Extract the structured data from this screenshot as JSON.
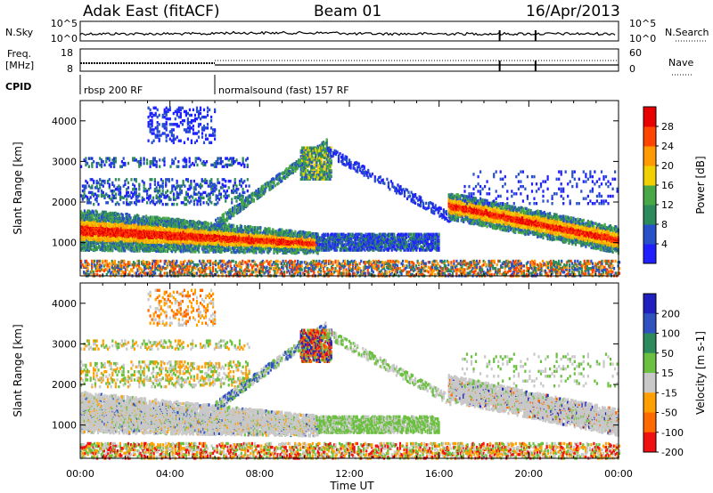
{
  "header": {
    "station": "Adak East (fitACF)",
    "beam": "Beam 01",
    "date": "16/Apr/2013"
  },
  "panels": {
    "nsky_label": "N.Sky",
    "nsearch_label": "N.Search",
    "nsky_ticks": [
      "10^5",
      "10^0"
    ],
    "nsearch_ticks": [
      "10^5",
      "10^0"
    ],
    "freq_label_1": "Freq.",
    "freq_label_2": "[MHz]",
    "freq_ticks": [
      "18",
      "8"
    ],
    "nave_label": "Nave",
    "nave_ticks": [
      "60",
      "0"
    ],
    "cpid_label": "CPID",
    "cpid_segments": [
      {
        "label": "rbsp 200 RF",
        "start_hour": 0,
        "end_hour": 6
      },
      {
        "label": "normalsound (fast) 157 RF",
        "start_hour": 6,
        "end_hour": 24
      }
    ]
  },
  "colorbars": {
    "power": {
      "label": "Power [dB]",
      "ticks": [
        "4",
        "8",
        "12",
        "16",
        "20",
        "24",
        "28"
      ],
      "colors": [
        "#1f1fff",
        "#2850c8",
        "#2d8a5a",
        "#48a848",
        "#f0d000",
        "#ff9a00",
        "#ff4400",
        "#e80000"
      ]
    },
    "velocity": {
      "label": "Velocity [m s-1]",
      "ticks": [
        "200",
        "100",
        "50",
        "15",
        "-15",
        "-50",
        "-100",
        "-200"
      ],
      "colors": [
        "#2020c0",
        "#2f52c0",
        "#2d8a5a",
        "#6cc040",
        "#c8c8c8",
        "#ffa000",
        "#ff6a00",
        "#f01010"
      ]
    }
  },
  "chart_data": [
    {
      "type": "heatmap",
      "name": "power",
      "xlabel": "Time UT",
      "ylabel": "Slant Range [km]",
      "x_ticks": [
        "00:00",
        "04:00",
        "08:00",
        "12:00",
        "16:00",
        "20:00",
        "00:00"
      ],
      "x_range_hours": [
        0,
        24
      ],
      "y_range_km": [
        180,
        4500
      ],
      "y_ticks": [
        1000,
        2000,
        3000,
        4000
      ],
      "colorbar": "Power [dB]",
      "features": [
        {
          "desc": "strong band",
          "t_start": 0,
          "t_end": 10.5,
          "range_km_start": 1350,
          "range_km_end": 1000,
          "power_db": 28
        },
        {
          "desc": "scatter patch",
          "t_start": 10,
          "t_end": 11,
          "range_km": 2900,
          "power_db": 16
        },
        {
          "desc": "band",
          "t_start": 10.5,
          "t_end": 16,
          "range_km": 1050,
          "power_db": 8
        },
        {
          "desc": "strong band",
          "t_start": 16.5,
          "t_end": 24,
          "range_km_start": 1900,
          "range_km_end": 1100,
          "power_db": 28
        }
      ]
    },
    {
      "type": "heatmap",
      "name": "velocity",
      "xlabel": "Time UT",
      "ylabel": "Slant Range [km]",
      "x_ticks": [
        "00:00",
        "04:00",
        "08:00",
        "12:00",
        "16:00",
        "20:00",
        "00:00"
      ],
      "x_range_hours": [
        0,
        24
      ],
      "y_range_km": [
        180,
        4500
      ],
      "y_ticks": [
        1000,
        2000,
        3000,
        4000
      ],
      "colorbar": "Velocity [m s-1]",
      "features": [
        {
          "desc": "low-velocity band",
          "t_start": 0,
          "t_end": 10.5,
          "range_km_start": 1350,
          "range_km_end": 1000,
          "velocity": 0
        },
        {
          "desc": "mixed patch",
          "t_start": 10,
          "t_end": 11,
          "range_km": 3000,
          "velocity": -200
        },
        {
          "desc": "band",
          "t_start": 16.5,
          "t_end": 24,
          "range_km_start": 1900,
          "range_km_end": 1100,
          "velocity": 0
        }
      ]
    }
  ]
}
